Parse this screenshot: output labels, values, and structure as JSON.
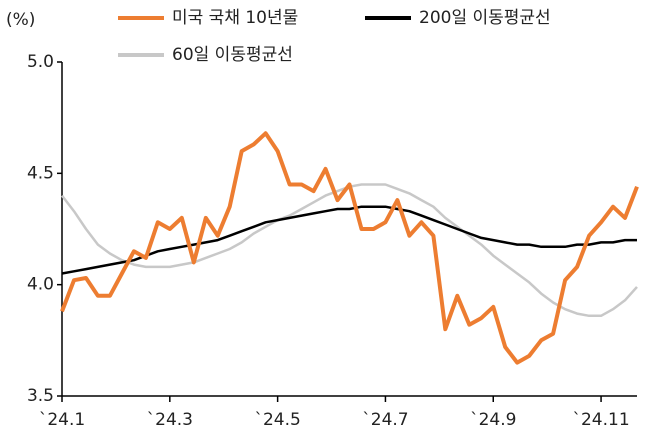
{
  "chart_data": {
    "type": "line",
    "y_unit": "(%)",
    "categories": [
      "`24.1",
      null,
      null,
      null,
      null,
      null,
      null,
      null,
      null,
      "`24.3",
      null,
      null,
      null,
      null,
      null,
      null,
      null,
      null,
      "`24.5",
      null,
      null,
      null,
      null,
      null,
      null,
      null,
      null,
      "`24.7",
      null,
      null,
      null,
      null,
      null,
      null,
      null,
      null,
      "`24.9",
      null,
      null,
      null,
      null,
      null,
      null,
      null,
      null,
      "`24.11",
      null,
      null,
      null
    ],
    "series": [
      {
        "name": "미국 국채 10년물",
        "color": "#ed7d31",
        "width": 4,
        "values": [
          3.88,
          4.02,
          4.03,
          3.95,
          3.95,
          4.05,
          4.15,
          4.12,
          4.28,
          4.25,
          4.3,
          4.1,
          4.3,
          4.22,
          4.35,
          4.6,
          4.63,
          4.68,
          4.6,
          4.45,
          4.45,
          4.42,
          4.52,
          4.38,
          4.45,
          4.25,
          4.25,
          4.28,
          4.38,
          4.22,
          4.28,
          4.22,
          3.8,
          3.95,
          3.82,
          3.85,
          3.9,
          3.72,
          3.65,
          3.68,
          3.75,
          3.78,
          4.02,
          4.08,
          4.22,
          4.28,
          4.35,
          4.3,
          4.44
        ]
      },
      {
        "name": "200일 이동평균선",
        "color": "#000000",
        "width": 2.5,
        "values": [
          4.05,
          4.06,
          4.07,
          4.08,
          4.09,
          4.1,
          4.11,
          4.13,
          4.15,
          4.16,
          4.17,
          4.18,
          4.19,
          4.2,
          4.22,
          4.24,
          4.26,
          4.28,
          4.29,
          4.3,
          4.31,
          4.32,
          4.33,
          4.34,
          4.34,
          4.35,
          4.35,
          4.35,
          4.34,
          4.33,
          4.31,
          4.29,
          4.27,
          4.25,
          4.23,
          4.21,
          4.2,
          4.19,
          4.18,
          4.18,
          4.17,
          4.17,
          4.17,
          4.18,
          4.18,
          4.19,
          4.19,
          4.2,
          4.2
        ]
      },
      {
        "name": "60일 이동평균선",
        "color": "#c8c8c8",
        "width": 2.5,
        "values": [
          4.4,
          4.33,
          4.25,
          4.18,
          4.14,
          4.11,
          4.09,
          4.08,
          4.08,
          4.08,
          4.09,
          4.1,
          4.12,
          4.14,
          4.16,
          4.19,
          4.23,
          4.26,
          4.29,
          4.31,
          4.34,
          4.37,
          4.4,
          4.42,
          4.44,
          4.45,
          4.45,
          4.45,
          4.43,
          4.41,
          4.38,
          4.35,
          4.3,
          4.26,
          4.22,
          4.18,
          4.13,
          4.09,
          4.05,
          4.01,
          3.96,
          3.92,
          3.89,
          3.87,
          3.86,
          3.86,
          3.89,
          3.93,
          3.99
        ]
      }
    ],
    "ylim": [
      3.5,
      5.0
    ],
    "yticks": [
      {
        "value": 5.0,
        "label": "5.0"
      },
      4.5,
      {
        "value": 4.0,
        "label": "4.0"
      },
      3.5
    ],
    "grid": false
  }
}
